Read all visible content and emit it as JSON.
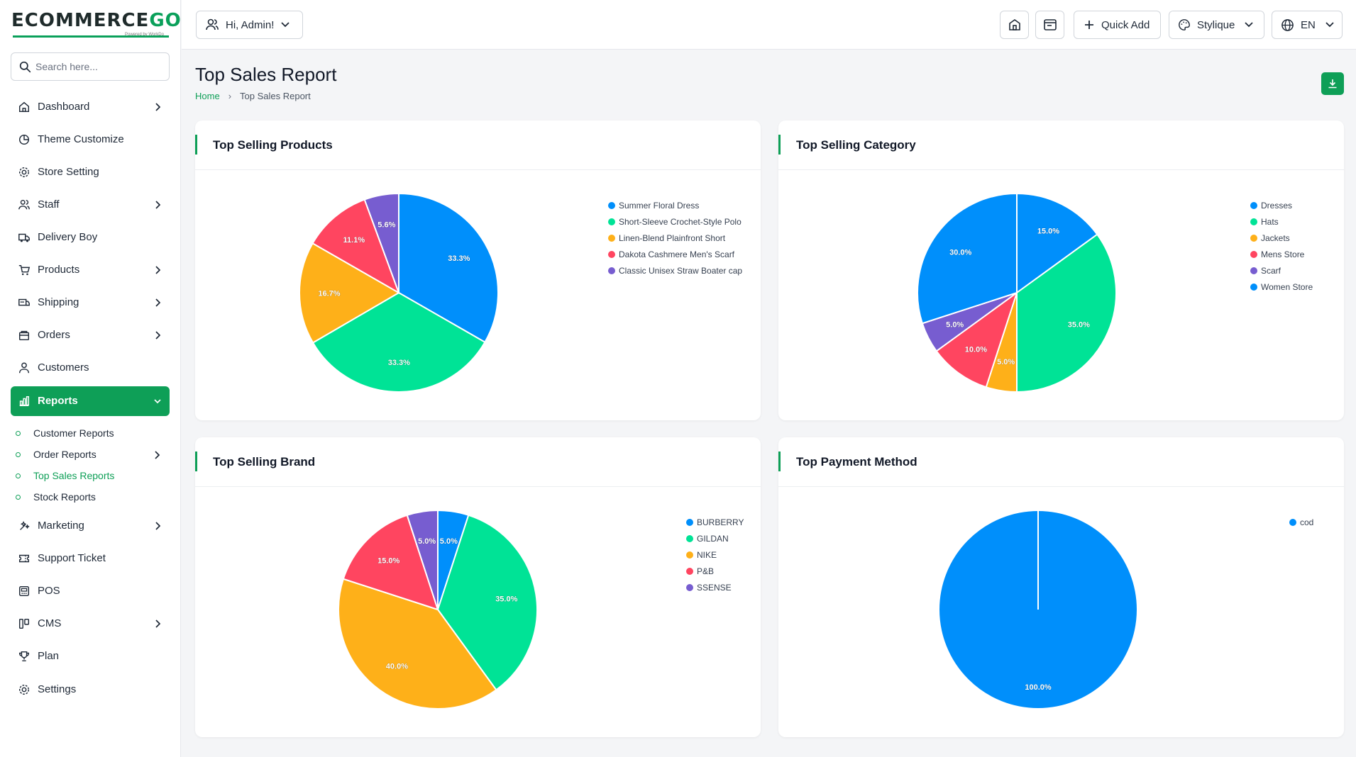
{
  "brand": {
    "name_main": "ECOMMERCE",
    "name_accent": "GO",
    "tagline": "Powered by WorkDo"
  },
  "search": {
    "placeholder": "Search here..."
  },
  "sidebar": {
    "items": [
      {
        "label": "Dashboard",
        "icon": "home-icon",
        "chevron": true
      },
      {
        "label": "Theme Customize",
        "icon": "palette-icon",
        "chevron": false
      },
      {
        "label": "Store Setting",
        "icon": "gear-icon",
        "chevron": false
      },
      {
        "label": "Staff",
        "icon": "users-icon",
        "chevron": true
      },
      {
        "label": "Delivery Boy",
        "icon": "truck-icon",
        "chevron": false
      },
      {
        "label": "Products",
        "icon": "cart-icon",
        "chevron": true
      },
      {
        "label": "Shipping",
        "icon": "shipping-icon",
        "chevron": true
      },
      {
        "label": "Orders",
        "icon": "box-icon",
        "chevron": true
      },
      {
        "label": "Customers",
        "icon": "user-icon",
        "chevron": false
      },
      {
        "label": "Reports",
        "icon": "chart-icon",
        "chevron": true,
        "active": true
      }
    ],
    "subitems": [
      {
        "label": "Customer Reports"
      },
      {
        "label": "Order Reports",
        "chevron": true
      },
      {
        "label": "Top Sales Reports",
        "current": true
      },
      {
        "label": "Stock Reports"
      }
    ],
    "items2": [
      {
        "label": "Marketing",
        "icon": "marketing-icon",
        "chevron": true
      },
      {
        "label": "Support Ticket",
        "icon": "ticket-icon",
        "chevron": false
      },
      {
        "label": "POS",
        "icon": "pos-icon",
        "chevron": false
      },
      {
        "label": "CMS",
        "icon": "cms-icon",
        "chevron": true
      },
      {
        "label": "Plan",
        "icon": "trophy-icon",
        "chevron": false
      },
      {
        "label": "Settings",
        "icon": "settings-icon",
        "chevron": false
      }
    ]
  },
  "header": {
    "greeting": "Hi, Admin!",
    "quick_add": "Quick Add",
    "theme": "Stylique",
    "language": "EN"
  },
  "page": {
    "title": "Top Sales Report",
    "breadcrumb_home": "Home",
    "breadcrumb_current": "Top Sales Report"
  },
  "colors": {
    "accent": "#0e9f57",
    "palette": [
      "#008ffb",
      "#00e396",
      "#feb019",
      "#ff4560",
      "#775dd0"
    ]
  },
  "chart_data": [
    {
      "type": "pie",
      "title": "Top Selling Products",
      "labels": [
        "Summer Floral Dress",
        "Short-Sleeve Crochet-Style Polo",
        "Linen-Blend Plainfront Short",
        "Dakota Cashmere Men's Scarf",
        "Classic Unisex Straw Boater cap"
      ],
      "values": [
        33.3,
        33.3,
        16.7,
        11.1,
        5.6
      ],
      "legend": "top-right"
    },
    {
      "type": "pie",
      "title": "Top Selling Category",
      "labels": [
        "Dresses",
        "Hats",
        "Jackets",
        "Mens Store",
        "Scarf",
        "Women Store"
      ],
      "values": [
        15.0,
        35.0,
        5.0,
        10.0,
        5.0,
        30.0
      ],
      "legend": "top-right"
    },
    {
      "type": "pie",
      "title": "Top Selling Brand",
      "labels": [
        "BURBERRY",
        "GILDAN",
        "NIKE",
        "P&B",
        "SSENSE"
      ],
      "values": [
        5.0,
        35.0,
        40.0,
        15.0,
        5.0
      ],
      "legend": "top-right"
    },
    {
      "type": "pie",
      "title": "Top Payment Method",
      "labels": [
        "cod"
      ],
      "values": [
        100.0
      ],
      "legend": "top-right"
    }
  ]
}
